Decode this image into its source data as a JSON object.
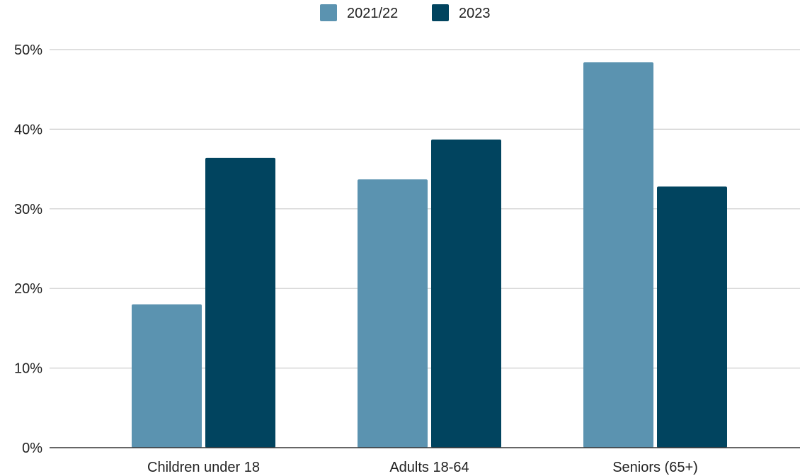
{
  "chart_data": {
    "type": "bar",
    "title": "",
    "xlabel": "",
    "ylabel": "",
    "categories": [
      "Children under 18",
      "Adults 18-64",
      "Seniors (65+)"
    ],
    "series": [
      {
        "name": "2021/22",
        "color": "#5b93b0",
        "values": [
          18,
          33.7,
          48.4
        ]
      },
      {
        "name": "2023",
        "color": "#01445f",
        "values": [
          36.4,
          38.7,
          32.8
        ]
      }
    ],
    "ylim": [
      0,
      50
    ],
    "yticks": [
      0,
      10,
      20,
      30,
      40,
      50
    ],
    "ytick_labels": [
      "0%",
      "10%",
      "20%",
      "30%",
      "40%",
      "50%"
    ],
    "grid": true,
    "legend_position": "top-center"
  }
}
